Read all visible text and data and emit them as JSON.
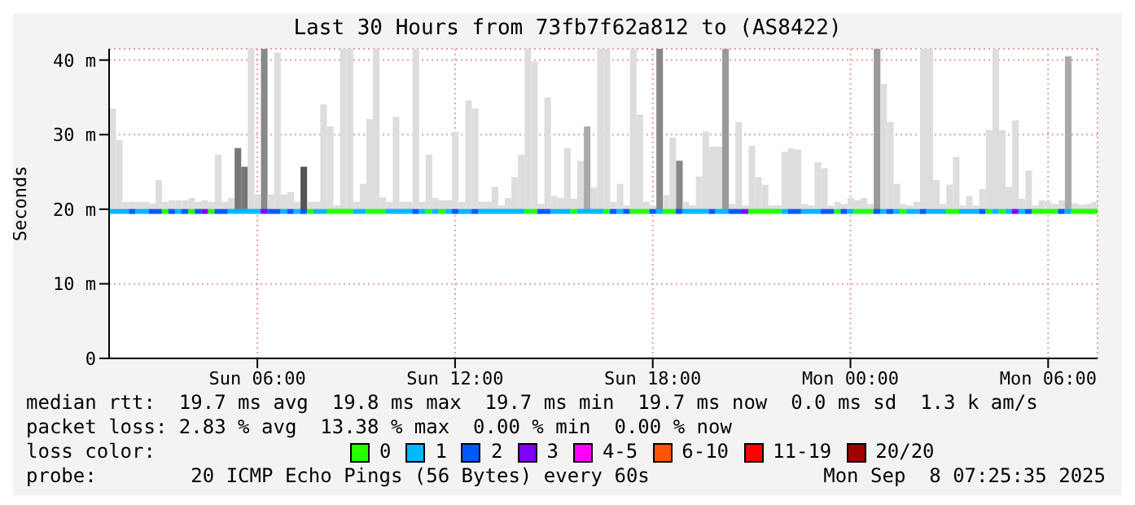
{
  "chart_data": {
    "type": "line",
    "title": "Last 30 Hours from 73fb7f62a812 to (AS8422)",
    "ylabel": "Seconds",
    "xlim": [
      "2025-09-07T01:30",
      "2025-09-08T07:30"
    ],
    "xticks": [
      {
        "value": "2025-09-07T06:00",
        "label": "Sun 06:00"
      },
      {
        "value": "2025-09-07T12:00",
        "label": "Sun 12:00"
      },
      {
        "value": "2025-09-07T18:00",
        "label": "Sun 18:00"
      },
      {
        "value": "2025-09-08T00:00",
        "label": "Mon 00:00"
      },
      {
        "value": "2025-09-08T06:00",
        "label": "Mon 06:00"
      }
    ],
    "ylim": [
      0,
      41.5
    ],
    "yticks": [
      0,
      {
        "value": 10,
        "label": "10 m"
      },
      {
        "value": 20,
        "label": "20 m"
      },
      {
        "value": 30,
        "label": "30 m"
      },
      {
        "value": 40,
        "label": "40 m"
      }
    ],
    "grid": true,
    "legend": "bottom",
    "legend_title": "loss color:",
    "marker": "none",
    "line_style": "solid",
    "annotations": [
      "median rtt:  19.7 ms avg  19.8 ms max  19.7 ms min  19.7 ms now  0.0 ms sd  1.3 k am/s",
      "packet loss: 2.83 % avg  13.38 % max  0.00 % min  0.00 % now",
      "probe:        20 ICMP Echo Pings (56 Bytes) every 60s",
      "Mon Sep  8 07:25:35 2025"
    ],
    "series": [
      {
        "type": "bar",
        "x": [
          "2025-09-07T01:36",
          "2025-09-07T01:48",
          "2025-09-07T02:00",
          "2025-09-07T02:12",
          "2025-09-07T02:24",
          "2025-09-07T02:36",
          "2025-09-07T02:48",
          "2025-09-07T03:00",
          "2025-09-07T03:12",
          "2025-09-07T03:24",
          "2025-09-07T03:36",
          "2025-09-07T03:48",
          "2025-09-07T04:00",
          "2025-09-07T04:12",
          "2025-09-07T04:24",
          "2025-09-07T04:36",
          "2025-09-07T04:48",
          "2025-09-07T05:00",
          "2025-09-07T05:12",
          "2025-09-07T05:24",
          "2025-09-07T05:36",
          "2025-09-07T05:48",
          "2025-09-07T06:00",
          "2025-09-07T06:12",
          "2025-09-07T06:24",
          "2025-09-07T06:36",
          "2025-09-07T06:48",
          "2025-09-07T07:00",
          "2025-09-07T07:12",
          "2025-09-07T07:24",
          "2025-09-07T07:36",
          "2025-09-07T07:48",
          "2025-09-07T08:00",
          "2025-09-07T08:12",
          "2025-09-07T08:24",
          "2025-09-07T08:36",
          "2025-09-07T08:48",
          "2025-09-07T09:00",
          "2025-09-07T09:12",
          "2025-09-07T09:24",
          "2025-09-07T09:36",
          "2025-09-07T09:48",
          "2025-09-07T10:00",
          "2025-09-07T10:12",
          "2025-09-07T10:24",
          "2025-09-07T10:36",
          "2025-09-07T10:48",
          "2025-09-07T11:00",
          "2025-09-07T11:12",
          "2025-09-07T11:24",
          "2025-09-07T11:36",
          "2025-09-07T11:48",
          "2025-09-07T12:00",
          "2025-09-07T12:12",
          "2025-09-07T12:24",
          "2025-09-07T12:36",
          "2025-09-07T12:48",
          "2025-09-07T13:00",
          "2025-09-07T13:12",
          "2025-09-07T13:24",
          "2025-09-07T13:36",
          "2025-09-07T13:48",
          "2025-09-07T14:00",
          "2025-09-07T14:12",
          "2025-09-07T14:24",
          "2025-09-07T14:36",
          "2025-09-07T14:48",
          "2025-09-07T15:00",
          "2025-09-07T15:12",
          "2025-09-07T15:24",
          "2025-09-07T15:36",
          "2025-09-07T15:48",
          "2025-09-07T16:00",
          "2025-09-07T16:12",
          "2025-09-07T16:24",
          "2025-09-07T16:36",
          "2025-09-07T16:48",
          "2025-09-07T17:00",
          "2025-09-07T17:12",
          "2025-09-07T17:24",
          "2025-09-07T17:36",
          "2025-09-07T17:48",
          "2025-09-07T18:00",
          "2025-09-07T18:12",
          "2025-09-07T18:24",
          "2025-09-07T18:36",
          "2025-09-07T18:48",
          "2025-09-07T19:00",
          "2025-09-07T19:12",
          "2025-09-07T19:24",
          "2025-09-07T19:36",
          "2025-09-07T19:48",
          "2025-09-07T20:00",
          "2025-09-07T20:12",
          "2025-09-07T20:24",
          "2025-09-07T20:36",
          "2025-09-07T20:48",
          "2025-09-07T21:00",
          "2025-09-07T21:12",
          "2025-09-07T21:24",
          "2025-09-07T21:36",
          "2025-09-07T21:48",
          "2025-09-07T22:00",
          "2025-09-07T22:12",
          "2025-09-07T22:24",
          "2025-09-07T22:36",
          "2025-09-07T22:48",
          "2025-09-07T23:00",
          "2025-09-07T23:12",
          "2025-09-07T23:24",
          "2025-09-07T23:36",
          "2025-09-07T23:48",
          "2025-09-08T00:00",
          "2025-09-08T00:12",
          "2025-09-08T00:24",
          "2025-09-08T00:36",
          "2025-09-08T00:48",
          "2025-09-08T01:00",
          "2025-09-08T01:12",
          "2025-09-08T01:24",
          "2025-09-08T01:36",
          "2025-09-08T01:48",
          "2025-09-08T02:00",
          "2025-09-08T02:12",
          "2025-09-08T02:24",
          "2025-09-08T02:36",
          "2025-09-08T02:48",
          "2025-09-08T03:00",
          "2025-09-08T03:12",
          "2025-09-08T03:24",
          "2025-09-08T03:36",
          "2025-09-08T03:48",
          "2025-09-08T04:00",
          "2025-09-08T04:12",
          "2025-09-08T04:24",
          "2025-09-08T04:36",
          "2025-09-08T04:48",
          "2025-09-08T05:00",
          "2025-09-08T05:12",
          "2025-09-08T05:24",
          "2025-09-08T05:36",
          "2025-09-08T05:48",
          "2025-09-08T06:00",
          "2025-09-08T06:12",
          "2025-09-08T06:24",
          "2025-09-08T06:36",
          "2025-09-08T06:48",
          "2025-09-08T07:00",
          "2025-09-08T07:12",
          "2025-09-08T07:24"
        ],
        "base": [
          19.7,
          19.7,
          19.7,
          19.7,
          19.7,
          19.7,
          19.7,
          19.7,
          19.7,
          19.7,
          19.7,
          19.7,
          19.7,
          19.7,
          19.7,
          19.7,
          19.7,
          19.7,
          19.7,
          19.7,
          19.7,
          19.7,
          19.7,
          19.7,
          19.7,
          19.7,
          19.7,
          19.7,
          19.7,
          19.7,
          19.7,
          19.7,
          19.7,
          19.7,
          19.7,
          19.7,
          19.7,
          19.7,
          19.7,
          19.7,
          19.7,
          19.7,
          19.7,
          19.7,
          19.7,
          19.7,
          19.7,
          19.7,
          19.7,
          19.7,
          19.7,
          19.7,
          19.7,
          19.7,
          19.7,
          19.7,
          19.7,
          19.7,
          19.7,
          19.7,
          19.7,
          19.7,
          19.7,
          19.7,
          19.7,
          19.7,
          19.7,
          19.7,
          19.7,
          19.7,
          19.7,
          19.7,
          19.7,
          19.7,
          19.7,
          19.7,
          19.7,
          19.7,
          19.7,
          19.7,
          19.7,
          19.7,
          19.7,
          19.7,
          19.7,
          19.7,
          19.7,
          19.7,
          19.7,
          19.7,
          19.7,
          19.7,
          19.7,
          19.7,
          19.7,
          19.7,
          19.7,
          19.7,
          19.7,
          19.7,
          19.7,
          19.7,
          19.7,
          19.7,
          19.7,
          19.7,
          19.7,
          19.7,
          19.7,
          19.7,
          19.7,
          19.7,
          19.7,
          19.7,
          19.7,
          19.7,
          19.7,
          19.7,
          19.7,
          19.7,
          19.7,
          19.7,
          19.7,
          19.7,
          19.7,
          19.7,
          19.7,
          19.7,
          19.7,
          19.7,
          19.7,
          19.7,
          19.7,
          19.7,
          19.7,
          19.7,
          19.7,
          19.7,
          19.7,
          19.7,
          19.7,
          19.7,
          19.7,
          19.7,
          19.7,
          19.7,
          19.7,
          19.7,
          19.7,
          19.7
        ],
        "values": [
          13.8,
          9.6,
          1.3,
          1.3,
          1.3,
          1.3,
          1.1,
          4.2,
          1.3,
          1.5,
          1.5,
          1.5,
          1.8,
          1.3,
          1.5,
          1.3,
          7.6,
          1.3,
          1.8,
          8.5,
          6,
          21.8,
          2.3,
          21.8,
          2.3,
          21.3,
          2.3,
          2.6,
          1.3,
          6,
          1.3,
          1.3,
          14.4,
          11.4,
          0.8,
          21.8,
          21.8,
          1.3,
          3.7,
          12.4,
          21.8,
          1.9,
          1.3,
          12.7,
          1.3,
          1.3,
          21.8,
          1.3,
          7.6,
          1.8,
          1.5,
          1.5,
          10.7,
          1.3,
          14.9,
          13.8,
          1.3,
          1.3,
          3.3,
          0.8,
          1.8,
          4.6,
          7.6,
          21.8,
          20.1,
          1,
          15.3,
          2.1,
          1.8,
          8.5,
          1.7,
          6.8,
          11.4,
          3.2,
          21.8,
          21.8,
          1.3,
          3.7,
          0.8,
          21.8,
          13,
          1.3,
          0.8,
          21.8,
          2.2,
          9.9,
          6.8,
          1.3,
          0.8,
          4.7,
          10.7,
          8.7,
          8.7,
          21.8,
          1,
          12,
          0.8,
          8.8,
          4.6,
          3.6,
          0.8,
          0.8,
          8,
          8.5,
          8.3,
          1,
          0.8,
          6.6,
          5.8,
          0.8,
          1.3,
          1,
          1.8,
          1.5,
          1.8,
          1,
          21.8,
          17.1,
          12,
          3.7,
          1,
          0.8,
          1.3,
          21.8,
          21.8,
          4.2,
          1,
          3.6,
          7.3,
          0.8,
          2.1,
          0.8,
          3,
          10.9,
          21.8,
          10.9,
          3.3,
          12.2,
          1.7,
          5.5,
          0.8,
          1.5,
          1.3,
          1,
          1.5,
          20.8,
          1.1,
          0.9,
          1,
          1.3
        ],
        "colors": [
          "#dddddd",
          "#dddddd",
          "#dddddd",
          "#dddddd",
          "#dddddd",
          "#dddddd",
          "#dddddd",
          "#dddddd",
          "#dddddd",
          "#dddddd",
          "#dddddd",
          "#dddddd",
          "#dddddd",
          "#dddddd",
          "#dddddd",
          "#dddddd",
          "#dddddd",
          "#dddddd",
          "#dddddd",
          "#777777",
          "#777777",
          "#dddddd",
          "#dddddd",
          "#888888",
          "#dddddd",
          "#dddddd",
          "#dddddd",
          "#dddddd",
          "#dddddd",
          "#555555",
          "#dddddd",
          "#dddddd",
          "#dddddd",
          "#dddddd",
          "#dddddd",
          "#dddddd",
          "#dddddd",
          "#dddddd",
          "#dddddd",
          "#dddddd",
          "#dddddd",
          "#dddddd",
          "#dddddd",
          "#dddddd",
          "#dddddd",
          "#dddddd",
          "#dddddd",
          "#dddddd",
          "#dddddd",
          "#dddddd",
          "#dddddd",
          "#dddddd",
          "#dddddd",
          "#dddddd",
          "#dddddd",
          "#dddddd",
          "#dddddd",
          "#dddddd",
          "#dddddd",
          "#dddddd",
          "#dddddd",
          "#dddddd",
          "#dddddd",
          "#dddddd",
          "#dddddd",
          "#dddddd",
          "#dddddd",
          "#dddddd",
          "#dddddd",
          "#dddddd",
          "#dddddd",
          "#dddddd",
          "#aaaaaa",
          "#dddddd",
          "#dddddd",
          "#dddddd",
          "#dddddd",
          "#dddddd",
          "#dddddd",
          "#dddddd",
          "#dddddd",
          "#dddddd",
          "#dddddd",
          "#888888",
          "#dddddd",
          "#dddddd",
          "#888888",
          "#dddddd",
          "#dddddd",
          "#dddddd",
          "#dddddd",
          "#dddddd",
          "#dddddd",
          "#999999",
          "#dddddd",
          "#dddddd",
          "#dddddd",
          "#dddddd",
          "#dddddd",
          "#dddddd",
          "#dddddd",
          "#dddddd",
          "#dddddd",
          "#dddddd",
          "#dddddd",
          "#dddddd",
          "#dddddd",
          "#dddddd",
          "#dddddd",
          "#dddddd",
          "#dddddd",
          "#dddddd",
          "#dddddd",
          "#dddddd",
          "#dddddd",
          "#dddddd",
          "#999999",
          "#dddddd",
          "#dddddd",
          "#dddddd",
          "#dddddd",
          "#dddddd",
          "#dddddd",
          "#dddddd",
          "#dddddd",
          "#dddddd",
          "#dddddd",
          "#dddddd",
          "#dddddd",
          "#dddddd",
          "#dddddd",
          "#dddddd",
          "#dddddd",
          "#dddddd",
          "#dddddd",
          "#dddddd",
          "#dddddd",
          "#dddddd",
          "#dddddd",
          "#dddddd",
          "#dddddd",
          "#dddddd",
          "#dddddd",
          "#dddddd",
          "#dddddd",
          "#aaaaaa",
          "#dddddd",
          "#dddddd",
          "#dddddd",
          "#dddddd"
        ]
      },
      {
        "name": "0",
        "color": "#26ff00",
        "x": [
          "2025-09-07T03:06",
          "2025-09-07T03:18"
        ],
        "values": [
          19.7,
          19.7
        ]
      },
      {
        "color": "#26ff00",
        "x": [
          "2025-09-07T03:54",
          "2025-09-07T04:06"
        ],
        "values": [
          19.7,
          19.7
        ]
      },
      {
        "color": "#26ff00",
        "x": [
          "2025-09-07T04:30",
          "2025-09-07T04:42"
        ],
        "values": [
          19.7,
          19.7
        ]
      },
      {
        "color": "#26ff00",
        "x": [
          "2025-09-07T07:30",
          "2025-09-07T07:42"
        ],
        "values": [
          19.7,
          19.7
        ]
      },
      {
        "color": "#26ff00",
        "x": [
          "2025-09-07T08:06",
          "2025-09-07T08:54"
        ],
        "values": [
          19.7,
          19.7
        ]
      },
      {
        "color": "#26ff00",
        "x": [
          "2025-09-07T09:18",
          "2025-09-07T09:54"
        ],
        "values": [
          19.7,
          19.7
        ]
      },
      {
        "color": "#26ff00",
        "x": [
          "2025-09-07T11:06",
          "2025-09-07T11:18"
        ],
        "values": [
          19.7,
          19.7
        ]
      },
      {
        "color": "#26ff00",
        "x": [
          "2025-09-07T11:30",
          "2025-09-07T11:42"
        ],
        "values": [
          19.7,
          19.7
        ]
      },
      {
        "color": "#26ff00",
        "x": [
          "2025-09-07T14:06",
          "2025-09-07T14:30"
        ],
        "values": [
          19.7,
          19.7
        ]
      },
      {
        "color": "#26ff00",
        "x": [
          "2025-09-07T15:30",
          "2025-09-07T15:42"
        ],
        "values": [
          19.7,
          19.7
        ]
      },
      {
        "color": "#26ff00",
        "x": [
          "2025-09-07T16:30",
          "2025-09-07T16:42"
        ],
        "values": [
          19.7,
          19.7
        ]
      },
      {
        "color": "#26ff00",
        "x": [
          "2025-09-07T17:18",
          "2025-09-07T17:54"
        ],
        "values": [
          19.7,
          19.7
        ]
      },
      {
        "color": "#26ff00",
        "x": [
          "2025-09-07T18:18",
          "2025-09-07T18:42"
        ],
        "values": [
          19.7,
          19.7
        ]
      },
      {
        "color": "#26ff00",
        "x": [
          "2025-09-07T20:54",
          "2025-09-07T21:54"
        ],
        "values": [
          19.7,
          19.7
        ]
      },
      {
        "color": "#26ff00",
        "x": [
          "2025-09-07T23:30",
          "2025-09-07T23:42"
        ],
        "values": [
          19.7,
          19.7
        ]
      },
      {
        "color": "#26ff00",
        "x": [
          "2025-09-08T00:06",
          "2025-09-08T00:42"
        ],
        "values": [
          19.7,
          19.7
        ]
      },
      {
        "color": "#26ff00",
        "x": [
          "2025-09-08T01:30",
          "2025-09-08T01:42"
        ],
        "values": [
          19.7,
          19.7
        ]
      },
      {
        "color": "#26ff00",
        "x": [
          "2025-09-08T02:54",
          "2025-09-08T03:18"
        ],
        "values": [
          19.7,
          19.7
        ]
      },
      {
        "color": "#26ff00",
        "x": [
          "2025-09-08T04:06",
          "2025-09-08T04:18"
        ],
        "values": [
          19.7,
          19.7
        ]
      },
      {
        "color": "#26ff00",
        "x": [
          "2025-09-08T04:30",
          "2025-09-08T04:42"
        ],
        "values": [
          19.7,
          19.7
        ]
      },
      {
        "color": "#26ff00",
        "x": [
          "2025-09-08T05:30",
          "2025-09-08T06:18"
        ],
        "values": [
          19.7,
          19.7
        ]
      },
      {
        "color": "#26ff00",
        "x": [
          "2025-09-08T06:42",
          "2025-09-08T07:30"
        ],
        "values": [
          19.7,
          19.7
        ]
      },
      {
        "name": "1",
        "color": "#00b8ff",
        "x": [
          "2025-09-07T01:30",
          "2025-09-07T02:06"
        ],
        "values": [
          19.7,
          19.7
        ]
      },
      {
        "color": "#00b8ff",
        "x": [
          "2025-09-07T02:18",
          "2025-09-07T02:42"
        ],
        "values": [
          19.7,
          19.7
        ]
      },
      {
        "color": "#00b8ff",
        "x": [
          "2025-09-07T03:30",
          "2025-09-07T03:42"
        ],
        "values": [
          19.7,
          19.7
        ]
      },
      {
        "color": "#00b8ff",
        "x": [
          "2025-09-07T05:06",
          "2025-09-07T06:06"
        ],
        "values": [
          19.7,
          19.7
        ]
      },
      {
        "color": "#00b8ff",
        "x": [
          "2025-09-07T06:42",
          "2025-09-07T06:54"
        ],
        "values": [
          19.7,
          19.7
        ]
      },
      {
        "color": "#00b8ff",
        "x": [
          "2025-09-07T07:06",
          "2025-09-07T07:18"
        ],
        "values": [
          19.7,
          19.7
        ]
      },
      {
        "color": "#00b8ff",
        "x": [
          "2025-09-07T07:42",
          "2025-09-07T08:06"
        ],
        "values": [
          19.7,
          19.7
        ]
      },
      {
        "color": "#00b8ff",
        "x": [
          "2025-09-07T08:54",
          "2025-09-07T09:18"
        ],
        "values": [
          19.7,
          19.7
        ]
      },
      {
        "color": "#00b8ff",
        "x": [
          "2025-09-07T09:54",
          "2025-09-07T10:42"
        ],
        "values": [
          19.7,
          19.7
        ]
      },
      {
        "color": "#00b8ff",
        "x": [
          "2025-09-07T10:54",
          "2025-09-07T11:06"
        ],
        "values": [
          19.7,
          19.7
        ]
      },
      {
        "color": "#00b8ff",
        "x": [
          "2025-09-07T11:18",
          "2025-09-07T11:30"
        ],
        "values": [
          19.7,
          19.7
        ]
      },
      {
        "color": "#00b8ff",
        "x": [
          "2025-09-07T11:42",
          "2025-09-07T11:54"
        ],
        "values": [
          19.7,
          19.7
        ]
      },
      {
        "color": "#00b8ff",
        "x": [
          "2025-09-07T12:06",
          "2025-09-07T12:30"
        ],
        "values": [
          19.7,
          19.7
        ]
      },
      {
        "color": "#00b8ff",
        "x": [
          "2025-09-07T12:42",
          "2025-09-07T14:06"
        ],
        "values": [
          19.7,
          19.7
        ]
      },
      {
        "color": "#00b8ff",
        "x": [
          "2025-09-07T14:54",
          "2025-09-07T15:30"
        ],
        "values": [
          19.7,
          19.7
        ]
      },
      {
        "color": "#00b8ff",
        "x": [
          "2025-09-07T15:42",
          "2025-09-07T16:30"
        ],
        "values": [
          19.7,
          19.7
        ]
      },
      {
        "color": "#00b8ff",
        "x": [
          "2025-09-07T16:54",
          "2025-09-07T17:06"
        ],
        "values": [
          19.7,
          19.7
        ]
      },
      {
        "color": "#00b8ff",
        "x": [
          "2025-09-07T18:06",
          "2025-09-07T18:18"
        ],
        "values": [
          19.7,
          19.7
        ]
      },
      {
        "color": "#00b8ff",
        "x": [
          "2025-09-07T18:54",
          "2025-09-07T19:42"
        ],
        "values": [
          19.7,
          19.7
        ]
      },
      {
        "color": "#00b8ff",
        "x": [
          "2025-09-07T19:54",
          "2025-09-07T20:18"
        ],
        "values": [
          19.7,
          19.7
        ]
      },
      {
        "color": "#00b8ff",
        "x": [
          "2025-09-07T21:54",
          "2025-09-07T22:06"
        ],
        "values": [
          19.7,
          19.7
        ]
      },
      {
        "color": "#00b8ff",
        "x": [
          "2025-09-07T22:30",
          "2025-09-07T23:06"
        ],
        "values": [
          19.7,
          19.7
        ]
      },
      {
        "color": "#00b8ff",
        "x": [
          "2025-09-07T23:54",
          "2025-09-08T00:06"
        ],
        "values": [
          19.7,
          19.7
        ]
      },
      {
        "color": "#00b8ff",
        "x": [
          "2025-09-08T00:54",
          "2025-09-08T01:06"
        ],
        "values": [
          19.7,
          19.7
        ]
      },
      {
        "color": "#00b8ff",
        "x": [
          "2025-09-08T01:18",
          "2025-09-08T01:30"
        ],
        "values": [
          19.7,
          19.7
        ]
      },
      {
        "color": "#00b8ff",
        "x": [
          "2025-09-08T01:42",
          "2025-09-08T02:06"
        ],
        "values": [
          19.7,
          19.7
        ]
      },
      {
        "color": "#00b8ff",
        "x": [
          "2025-09-08T02:18",
          "2025-09-08T02:54"
        ],
        "values": [
          19.7,
          19.7
        ]
      },
      {
        "color": "#00b8ff",
        "x": [
          "2025-09-08T03:18",
          "2025-09-08T03:54"
        ],
        "values": [
          19.7,
          19.7
        ]
      },
      {
        "color": "#00b8ff",
        "x": [
          "2025-09-08T04:18",
          "2025-09-08T04:30"
        ],
        "values": [
          19.7,
          19.7
        ]
      },
      {
        "color": "#00b8ff",
        "x": [
          "2025-09-08T04:42",
          "2025-09-08T04:54"
        ],
        "values": [
          19.7,
          19.7
        ]
      },
      {
        "color": "#00b8ff",
        "x": [
          "2025-09-08T05:06",
          "2025-09-08T05:18"
        ],
        "values": [
          19.7,
          19.7
        ]
      },
      {
        "color": "#00b8ff",
        "x": [
          "2025-09-08T06:30",
          "2025-09-08T06:42"
        ],
        "values": [
          19.7,
          19.7
        ]
      },
      {
        "name": "2",
        "color": "#0059ff",
        "x": [
          "2025-09-07T02:06",
          "2025-09-07T02:18"
        ],
        "values": [
          19.7,
          19.7
        ]
      },
      {
        "color": "#0059ff",
        "x": [
          "2025-09-07T02:42",
          "2025-09-07T03:06"
        ],
        "values": [
          19.7,
          19.7
        ]
      },
      {
        "color": "#0059ff",
        "x": [
          "2025-09-07T03:18",
          "2025-09-07T03:30"
        ],
        "values": [
          19.7,
          19.7
        ]
      },
      {
        "color": "#0059ff",
        "x": [
          "2025-09-07T03:42",
          "2025-09-07T03:54"
        ],
        "values": [
          19.7,
          19.7
        ]
      },
      {
        "color": "#0059ff",
        "x": [
          "2025-09-07T04:06",
          "2025-09-07T04:18"
        ],
        "values": [
          19.7,
          19.7
        ]
      },
      {
        "color": "#0059ff",
        "x": [
          "2025-09-07T04:42",
          "2025-09-07T05:06"
        ],
        "values": [
          19.7,
          19.7
        ]
      },
      {
        "color": "#0059ff",
        "x": [
          "2025-09-07T06:18",
          "2025-09-07T06:42"
        ],
        "values": [
          19.7,
          19.7
        ]
      },
      {
        "color": "#0059ff",
        "x": [
          "2025-09-07T06:54",
          "2025-09-07T07:06"
        ],
        "values": [
          19.7,
          19.7
        ]
      },
      {
        "color": "#0059ff",
        "x": [
          "2025-09-07T07:18",
          "2025-09-07T07:30"
        ],
        "values": [
          19.7,
          19.7
        ]
      },
      {
        "color": "#0059ff",
        "x": [
          "2025-09-07T10:42",
          "2025-09-07T10:54"
        ],
        "values": [
          19.7,
          19.7
        ]
      },
      {
        "color": "#0059ff",
        "x": [
          "2025-09-07T11:54",
          "2025-09-07T12:06"
        ],
        "values": [
          19.7,
          19.7
        ]
      },
      {
        "color": "#0059ff",
        "x": [
          "2025-09-07T12:30",
          "2025-09-07T12:42"
        ],
        "values": [
          19.7,
          19.7
        ]
      },
      {
        "color": "#0059ff",
        "x": [
          "2025-09-07T14:30",
          "2025-09-07T14:54"
        ],
        "values": [
          19.7,
          19.7
        ]
      },
      {
        "color": "#0059ff",
        "x": [
          "2025-09-07T16:42",
          "2025-09-07T16:54"
        ],
        "values": [
          19.7,
          19.7
        ]
      },
      {
        "color": "#0059ff",
        "x": [
          "2025-09-07T17:06",
          "2025-09-07T17:18"
        ],
        "values": [
          19.7,
          19.7
        ]
      },
      {
        "color": "#0059ff",
        "x": [
          "2025-09-07T17:54",
          "2025-09-07T18:06"
        ],
        "values": [
          19.7,
          19.7
        ]
      },
      {
        "color": "#0059ff",
        "x": [
          "2025-09-07T18:42",
          "2025-09-07T18:54"
        ],
        "values": [
          19.7,
          19.7
        ]
      },
      {
        "color": "#0059ff",
        "x": [
          "2025-09-07T19:42",
          "2025-09-07T19:54"
        ],
        "values": [
          19.7,
          19.7
        ]
      },
      {
        "color": "#0059ff",
        "x": [
          "2025-09-07T20:18",
          "2025-09-07T20:42"
        ],
        "values": [
          19.7,
          19.7
        ]
      },
      {
        "color": "#0059ff",
        "x": [
          "2025-09-07T22:06",
          "2025-09-07T22:30"
        ],
        "values": [
          19.7,
          19.7
        ]
      },
      {
        "color": "#0059ff",
        "x": [
          "2025-09-07T23:06",
          "2025-09-07T23:30"
        ],
        "values": [
          19.7,
          19.7
        ]
      },
      {
        "color": "#0059ff",
        "x": [
          "2025-09-07T23:42",
          "2025-09-07T23:54"
        ],
        "values": [
          19.7,
          19.7
        ]
      },
      {
        "color": "#0059ff",
        "x": [
          "2025-09-08T00:42",
          "2025-09-08T00:54"
        ],
        "values": [
          19.7,
          19.7
        ]
      },
      {
        "color": "#0059ff",
        "x": [
          "2025-09-08T01:06",
          "2025-09-08T01:18"
        ],
        "values": [
          19.7,
          19.7
        ]
      },
      {
        "color": "#0059ff",
        "x": [
          "2025-09-08T02:06",
          "2025-09-08T02:18"
        ],
        "values": [
          19.7,
          19.7
        ]
      },
      {
        "color": "#0059ff",
        "x": [
          "2025-09-08T03:54",
          "2025-09-08T04:06"
        ],
        "values": [
          19.7,
          19.7
        ]
      },
      {
        "color": "#0059ff",
        "x": [
          "2025-09-08T05:18",
          "2025-09-08T05:30"
        ],
        "values": [
          19.7,
          19.7
        ]
      },
      {
        "color": "#0059ff",
        "x": [
          "2025-09-08T06:18",
          "2025-09-08T06:30"
        ],
        "values": [
          19.7,
          19.7
        ]
      },
      {
        "name": "3",
        "color": "#7e00ff",
        "x": [
          "2025-09-07T04:18",
          "2025-09-07T04:30"
        ],
        "values": [
          19.7,
          19.7
        ]
      },
      {
        "color": "#7e00ff",
        "x": [
          "2025-09-07T06:06",
          "2025-09-07T06:18"
        ],
        "values": [
          19.7,
          19.7
        ]
      },
      {
        "color": "#7e00ff",
        "x": [
          "2025-09-07T20:42",
          "2025-09-07T20:54"
        ],
        "values": [
          19.7,
          19.7
        ]
      },
      {
        "color": "#7e00ff",
        "x": [
          "2025-09-08T04:54",
          "2025-09-08T05:06"
        ],
        "values": [
          19.7,
          19.7
        ]
      },
      {
        "name": "4-5",
        "color": "#ff00ff"
      },
      {
        "name": "6-10",
        "color": "#ff5500"
      },
      {
        "name": "11-19",
        "color": "#ff0000"
      },
      {
        "name": "20/20",
        "color": "#a10000"
      }
    ]
  }
}
